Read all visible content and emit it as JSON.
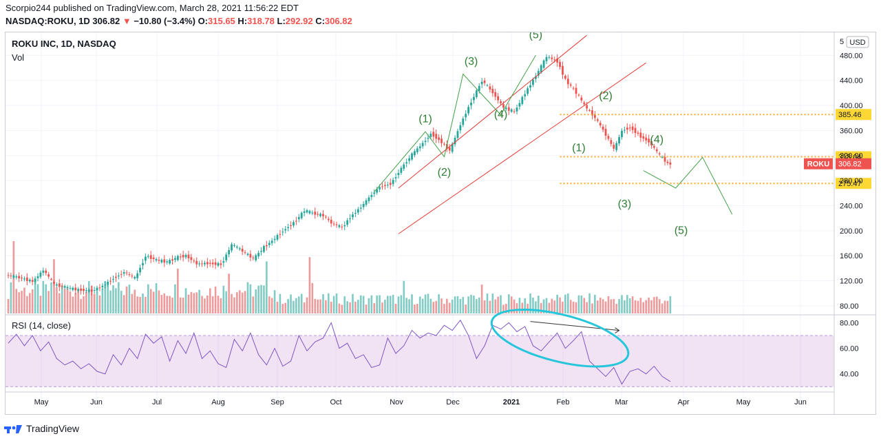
{
  "header": {
    "published_line": "Scorpio244 published on TradingView.com, March 28, 2021 11:56:22 EDT",
    "symbol": "NASDAQ:ROKU, 1D",
    "last": "306.82",
    "change_arrow": "▼",
    "change": "−10.80 (−3.4%)",
    "open_label": "O:",
    "open": "315.65",
    "high_label": "H:",
    "high": "318.78",
    "low_label": "L:",
    "low": "292.92",
    "close_label": "C:",
    "close": "306.82"
  },
  "legend": {
    "title": "ROKU INC, 1D, NASDAQ",
    "vol_label": "Vol",
    "rsi_label": "RSI (14, close)"
  },
  "currency_button": "USD",
  "top_cut_label": "5",
  "brand": {
    "name": "TradingView"
  },
  "colors": {
    "up": "#26a69a",
    "down": "#ef5350",
    "vol_up": "#80cbc4",
    "vol_down": "#ef9a9a",
    "channel": "#e53935",
    "wave": "#43a047",
    "level": "#f9a825",
    "rsi": "#7e57c2",
    "rsi_band": "#e1bee7",
    "ellipse": "#26c6da",
    "price_tag": "#ef5350"
  },
  "chart_data": {
    "type": "candlestick",
    "title": "ROKU INC, 1D, NASDAQ",
    "price_axis": {
      "ticks": [
        80,
        120,
        160,
        200,
        240,
        280,
        320,
        360,
        400,
        440,
        480
      ],
      "tick_labels": [
        "80.00",
        "120.00",
        "160.00",
        "200.00",
        "240.00",
        "280.00",
        "320.00",
        "360.00",
        "400.00",
        "440.00",
        "480.00"
      ],
      "range": [
        70,
        510
      ]
    },
    "time_axis": {
      "labels": [
        "May",
        "Jun",
        "Jul",
        "Aug",
        "Sep",
        "Oct",
        "Nov",
        "Dec",
        "2021",
        "Feb",
        "Mar",
        "Apr",
        "May",
        "Jun"
      ],
      "bold_label": "2021"
    },
    "price_path": [
      [
        0,
        129
      ],
      [
        4,
        126
      ],
      [
        10,
        119
      ],
      [
        14,
        137
      ],
      [
        18,
        114
      ],
      [
        22,
        110
      ],
      [
        26,
        106
      ],
      [
        32,
        104
      ],
      [
        36,
        112
      ],
      [
        40,
        124
      ],
      [
        44,
        134
      ],
      [
        48,
        124
      ],
      [
        52,
        160
      ],
      [
        56,
        153
      ],
      [
        60,
        150
      ],
      [
        64,
        158
      ],
      [
        67,
        160
      ],
      [
        71,
        147
      ],
      [
        75,
        148
      ],
      [
        80,
        146
      ],
      [
        84,
        178
      ],
      [
        87,
        170
      ],
      [
        92,
        155
      ],
      [
        96,
        174
      ],
      [
        99,
        184
      ],
      [
        103,
        200
      ],
      [
        107,
        213
      ],
      [
        111,
        232
      ],
      [
        114,
        228
      ],
      [
        118,
        224
      ],
      [
        121,
        212
      ],
      [
        125,
        205
      ],
      [
        128,
        222
      ],
      [
        132,
        238
      ],
      [
        136,
        258
      ],
      [
        139,
        270
      ],
      [
        143,
        275
      ],
      [
        147,
        300
      ],
      [
        151,
        322
      ],
      [
        155,
        340
      ],
      [
        158,
        355
      ],
      [
        161,
        345
      ],
      [
        165,
        328
      ],
      [
        169,
        370
      ],
      [
        173,
        407
      ],
      [
        177,
        440
      ],
      [
        181,
        420
      ],
      [
        185,
        396
      ],
      [
        189,
        390
      ],
      [
        193,
        420
      ],
      [
        197,
        448
      ],
      [
        201,
        478
      ],
      [
        205,
        470
      ],
      [
        208,
        440
      ],
      [
        212,
        420
      ],
      [
        215,
        400
      ],
      [
        219,
        380
      ],
      [
        222,
        360
      ],
      [
        226,
        330
      ],
      [
        229,
        360
      ],
      [
        232,
        365
      ],
      [
        236,
        350
      ],
      [
        239,
        342
      ],
      [
        243,
        320
      ],
      [
        246,
        306.82
      ]
    ],
    "last_price": 306.82,
    "last_price_label": "306.82",
    "last_price_ticker": "ROKU",
    "levels": [
      {
        "value": 385.46,
        "label": "385.46"
      },
      {
        "value": 318.04,
        "label": "318.04"
      },
      {
        "value": 275.47,
        "label": "275.47"
      }
    ],
    "volume": {
      "spike_days": [
        [
          2,
          1.0
        ],
        [
          17,
          0.75
        ],
        [
          63,
          0.62
        ],
        [
          82,
          0.55
        ],
        [
          96,
          0.72
        ],
        [
          112,
          0.78
        ],
        [
          113,
          0.42
        ],
        [
          147,
          0.45
        ],
        [
          176,
          0.4
        ]
      ]
    },
    "rsi": {
      "ticks": [
        40,
        60,
        80
      ],
      "tick_labels": [
        "40.00",
        "60.00",
        "80.00"
      ],
      "upper_band": 70,
      "lower_band": 30,
      "range": [
        28,
        84
      ],
      "path": [
        [
          0,
          64
        ],
        [
          3,
          71
        ],
        [
          6,
          62
        ],
        [
          9,
          70
        ],
        [
          12,
          58
        ],
        [
          15,
          65
        ],
        [
          18,
          52
        ],
        [
          21,
          47
        ],
        [
          24,
          50
        ],
        [
          27,
          44
        ],
        [
          30,
          48
        ],
        [
          33,
          42
        ],
        [
          36,
          40
        ],
        [
          39,
          55
        ],
        [
          42,
          47
        ],
        [
          45,
          60
        ],
        [
          48,
          52
        ],
        [
          51,
          71
        ],
        [
          54,
          64
        ],
        [
          57,
          69
        ],
        [
          60,
          50
        ],
        [
          63,
          66
        ],
        [
          66,
          56
        ],
        [
          69,
          72
        ],
        [
          72,
          52
        ],
        [
          75,
          58
        ],
        [
          78,
          48
        ],
        [
          81,
          45
        ],
        [
          84,
          67
        ],
        [
          87,
          58
        ],
        [
          90,
          72
        ],
        [
          93,
          55
        ],
        [
          96,
          47
        ],
        [
          99,
          60
        ],
        [
          102,
          46
        ],
        [
          105,
          50
        ],
        [
          108,
          70
        ],
        [
          111,
          58
        ],
        [
          114,
          65
        ],
        [
          117,
          68
        ],
        [
          120,
          80
        ],
        [
          123,
          60
        ],
        [
          126,
          64
        ],
        [
          129,
          52
        ],
        [
          132,
          55
        ],
        [
          135,
          45
        ],
        [
          138,
          47
        ],
        [
          141,
          68
        ],
        [
          144,
          56
        ],
        [
          147,
          62
        ],
        [
          150,
          74
        ],
        [
          153,
          68
        ],
        [
          156,
          72
        ],
        [
          159,
          70
        ],
        [
          162,
          78
        ],
        [
          165,
          74
        ],
        [
          168,
          82
        ],
        [
          171,
          70
        ],
        [
          174,
          52
        ],
        [
          177,
          62
        ],
        [
          180,
          78
        ],
        [
          183,
          75
        ],
        [
          186,
          80
        ],
        [
          189,
          73
        ],
        [
          192,
          77
        ],
        [
          195,
          62
        ],
        [
          198,
          58
        ],
        [
          201,
          65
        ],
        [
          204,
          72
        ],
        [
          207,
          60
        ],
        [
          210,
          66
        ],
        [
          213,
          73
        ],
        [
          216,
          50
        ],
        [
          219,
          44
        ],
        [
          222,
          38
        ],
        [
          225,
          45
        ],
        [
          228,
          32
        ],
        [
          231,
          42
        ],
        [
          234,
          44
        ],
        [
          237,
          40
        ],
        [
          240,
          46
        ],
        [
          243,
          38
        ],
        [
          246,
          34
        ]
      ]
    },
    "annotations": {
      "wave_labels": [
        {
          "text": "(1)",
          "day": 155,
          "price": 373
        },
        {
          "text": "(2)",
          "day": 162,
          "price": 288
        },
        {
          "text": "(3)",
          "day": 172,
          "price": 465
        },
        {
          "text": "(4)",
          "day": 183,
          "price": 380
        },
        {
          "text": "(5)",
          "day": 196,
          "price": 507
        },
        {
          "text": "(1)",
          "day": 212,
          "price": 327
        },
        {
          "text": "(2)",
          "day": 222,
          "price": 410
        },
        {
          "text": "(3)",
          "day": 229,
          "price": 237
        },
        {
          "text": "(4)",
          "day": 241,
          "price": 340
        },
        {
          "text": "(5)",
          "day": 250,
          "price": 195
        }
      ],
      "projection_path": [
        [
          236,
          296
        ],
        [
          248,
          268
        ],
        [
          258,
          317
        ],
        [
          269,
          226
        ]
      ],
      "wave_path": [
        [
          136,
          262
        ],
        [
          155,
          358
        ],
        [
          162,
          318
        ],
        [
          169,
          450
        ],
        [
          183,
          385
        ],
        [
          196,
          480
        ]
      ]
    }
  }
}
